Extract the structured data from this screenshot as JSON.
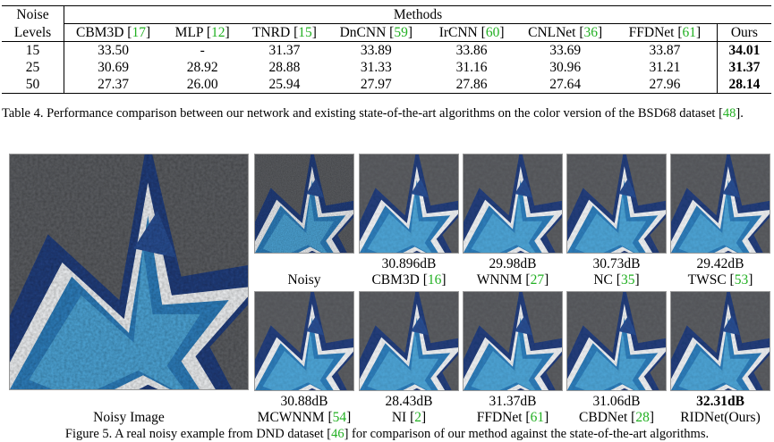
{
  "table": {
    "header_noise": [
      "Noise",
      "Levels"
    ],
    "header_methods": "Methods",
    "columns": [
      {
        "name": "CBM3D",
        "ref": "17"
      },
      {
        "name": "MLP",
        "ref": "12"
      },
      {
        "name": "TNRD",
        "ref": "15"
      },
      {
        "name": "DnCNN",
        "ref": "59"
      },
      {
        "name": "IrCNN",
        "ref": "60"
      },
      {
        "name": "CNLNet",
        "ref": "36"
      },
      {
        "name": "FFDNet",
        "ref": "61"
      },
      {
        "name": "Ours",
        "ref": ""
      }
    ],
    "rows": [
      {
        "level": "15",
        "values": [
          "33.50",
          "-",
          "31.37",
          "33.89",
          "33.86",
          "33.69",
          "33.87",
          "34.01"
        ]
      },
      {
        "level": "25",
        "values": [
          "30.69",
          "28.92",
          "28.88",
          "31.33",
          "31.16",
          "30.96",
          "31.21",
          "31.37"
        ]
      },
      {
        "level": "50",
        "values": [
          "27.37",
          "26.00",
          "25.94",
          "27.97",
          "27.86",
          "27.64",
          "27.96",
          "28.14"
        ]
      }
    ],
    "caption_prefix": "Table 4. Performance comparison between our network and existing state-of-the-art algorithms on the color version of the BSD68 dataset [",
    "caption_ref": "48",
    "caption_suffix": "]."
  },
  "figure": {
    "big_label": "Noisy Image",
    "top_row": [
      {
        "score": "",
        "name": "Noisy",
        "ref": ""
      },
      {
        "score": "30.896dB",
        "name": "CBM3D",
        "ref": "16"
      },
      {
        "score": "29.98dB",
        "name": "WNNM",
        "ref": "27"
      },
      {
        "score": "30.73dB",
        "name": "NC",
        "ref": "35"
      },
      {
        "score": "29.42dB",
        "name": "TWSC",
        "ref": "53"
      }
    ],
    "bottom_row": [
      {
        "score": "30.88dB",
        "name": "MCWNNM",
        "ref": "54"
      },
      {
        "score": "28.43dB",
        "name": "NI",
        "ref": "2"
      },
      {
        "score": "31.37dB",
        "name": "FFDNet",
        "ref": "61"
      },
      {
        "score": "31.06dB",
        "name": "CBDNet",
        "ref": "28"
      },
      {
        "score": "32.31dB",
        "name": "RIDNet(Ours)",
        "ref": "",
        "bold": true
      }
    ],
    "caption_prefix": "Figure 5. A real noisy example from DND dataset [",
    "caption_ref": "46",
    "caption_suffix": "] for comparison of our method against the state-of-the-art algorithms."
  }
}
